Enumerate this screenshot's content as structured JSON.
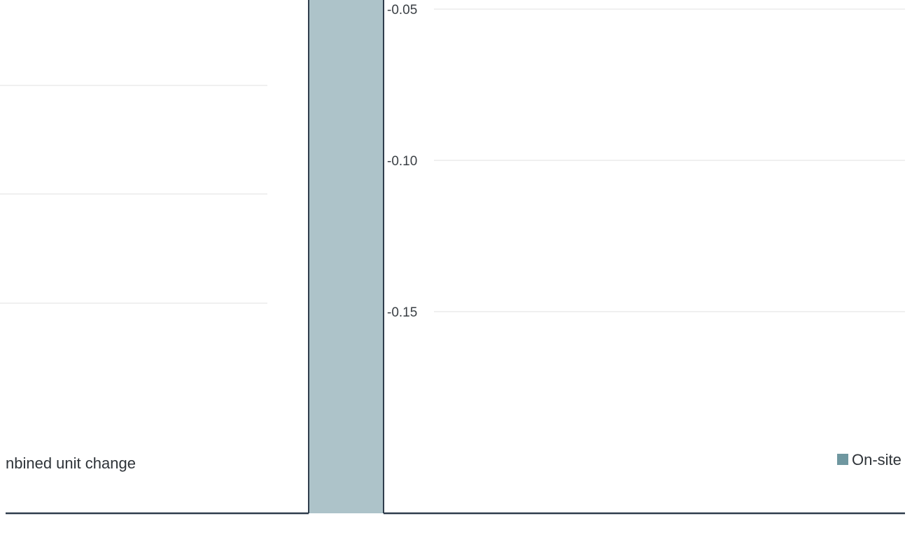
{
  "chart_data": {
    "type": "bar",
    "categories": [
      "Combined unit change"
    ],
    "visible_category_label": "nbined unit change",
    "series": [
      {
        "name": "On-site",
        "values": [
          -0.22
        ],
        "color": "#adc3c9",
        "legend_color": "#6f97a0"
      }
    ],
    "y_ticks": [
      {
        "value": -0.05,
        "label": "-0.05"
      },
      {
        "value": -0.1,
        "label": "-0.10"
      },
      {
        "value": -0.15,
        "label": "-0.15"
      }
    ],
    "ylim": [
      -0.21,
      -0.045
    ],
    "grid": true,
    "legend_position": "right",
    "colors": {
      "axis": "#2f3d4c",
      "grid": "#ececec",
      "text": "#3a3f44"
    }
  }
}
